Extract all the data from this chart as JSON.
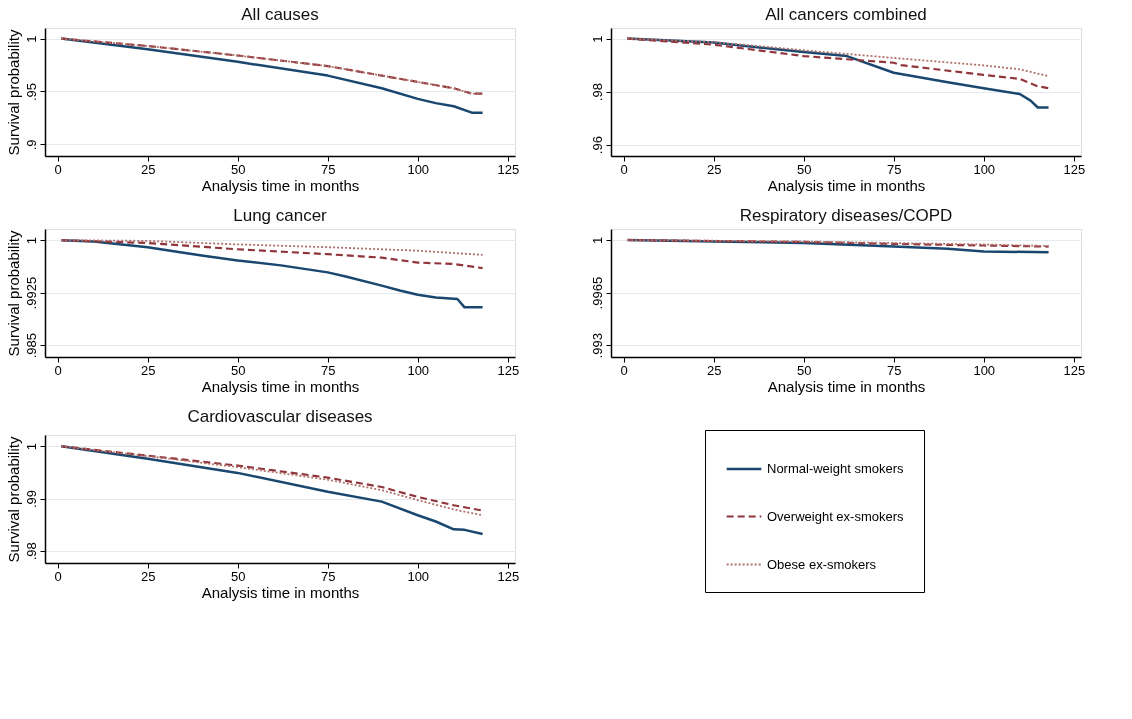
{
  "chart_data": [
    {
      "type": "line",
      "title": "All causes",
      "xlabel": "Analysis time in months",
      "ylabel": "Survival probability",
      "xlim": [
        -3.5,
        127
      ],
      "xticks": [
        0,
        25,
        50,
        75,
        100,
        125
      ],
      "ylim": [
        0.889,
        1.01
      ],
      "yticks": [
        {
          "value": 0.9,
          "label": ".9"
        },
        {
          "value": 0.95,
          "label": ".95"
        },
        1
      ],
      "grid": "y",
      "marker": "none",
      "legend": false,
      "series": [
        {
          "color": "#1a476f",
          "line_style": "solid",
          "x": [
            1,
            25,
            50,
            75,
            90,
            100,
            105,
            110,
            115,
            118
          ],
          "values": [
            1,
            0.99,
            0.978,
            0.965,
            0.953,
            0.943,
            0.939,
            0.936,
            0.93,
            0.93
          ]
        },
        {
          "color": "#90353b",
          "line_style": "dashed",
          "x": [
            1,
            25,
            50,
            75,
            100,
            110,
            115,
            118
          ],
          "values": [
            1,
            0.993,
            0.984,
            0.974,
            0.959,
            0.953,
            0.948,
            0.948
          ]
        },
        {
          "color": "#b0706a",
          "line_style": "dotted",
          "x": [
            1,
            25,
            50,
            75,
            100,
            110,
            115,
            118
          ],
          "values": [
            1,
            0.993,
            0.984,
            0.974,
            0.959,
            0.953,
            0.948,
            0.948
          ]
        }
      ]
    },
    {
      "type": "line",
      "title": "All cancers combined",
      "xlabel": "Analysis time in months",
      "xlim": [
        -3.5,
        127
      ],
      "xticks": [
        0,
        25,
        50,
        75,
        100,
        125
      ],
      "ylim": [
        0.9557,
        1.004
      ],
      "yticks": [
        {
          "value": 0.96,
          "label": ".96"
        },
        {
          "value": 0.98,
          "label": ".98"
        },
        1
      ],
      "grid": "y",
      "marker": "none",
      "legend": false,
      "series": [
        {
          "color": "#1a476f",
          "line_style": "solid",
          "x": [
            1,
            25,
            50,
            62,
            75,
            90,
            100,
            110,
            113,
            115,
            118
          ],
          "values": [
            1,
            0.9985,
            0.9949,
            0.9934,
            0.9871,
            0.9835,
            0.9813,
            0.9791,
            0.9766,
            0.974,
            0.974
          ]
        },
        {
          "color": "#90353b",
          "line_style": "dashed",
          "x": [
            1,
            25,
            50,
            75,
            77,
            100,
            110,
            115,
            118
          ],
          "values": [
            1,
            0.9977,
            0.9934,
            0.9909,
            0.99,
            0.9863,
            0.9848,
            0.982,
            0.9813
          ]
        },
        {
          "color": "#b0706a",
          "line_style": "dotted",
          "x": [
            1,
            25,
            50,
            75,
            100,
            110,
            118
          ],
          "values": [
            1,
            0.9987,
            0.9956,
            0.9927,
            0.9899,
            0.9884,
            0.9858
          ]
        }
      ]
    },
    {
      "type": "line",
      "title": "Lung cancer",
      "xlabel": "Analysis time in months",
      "ylabel": "Survival probability",
      "xlim": [
        -3.5,
        127
      ],
      "xticks": [
        0,
        25,
        50,
        75,
        100,
        125
      ],
      "ylim": [
        0.9833,
        1.0016
      ],
      "yticks": [
        {
          "value": 0.985,
          "label": ".985"
        },
        {
          "value": 0.9925,
          "label": ".9925"
        },
        1
      ],
      "grid": "y",
      "marker": "none",
      "legend": false,
      "series": [
        {
          "color": "#1a476f",
          "line_style": "solid",
          "x": [
            1,
            10,
            25,
            40,
            50,
            62,
            75,
            80,
            90,
            95,
            100,
            105,
            111,
            113,
            118
          ],
          "values": [
            1,
            0.9998,
            0.999,
            0.9978,
            0.9971,
            0.9964,
            0.9954,
            0.9948,
            0.9935,
            0.9928,
            0.9922,
            0.9918,
            0.9916,
            0.9904,
            0.9904
          ]
        },
        {
          "color": "#90353b",
          "line_style": "dashed",
          "x": [
            1,
            25,
            50,
            75,
            90,
            100,
            110,
            118
          ],
          "values": [
            1,
            0.9996,
            0.9987,
            0.998,
            0.9975,
            0.9968,
            0.9966,
            0.996
          ]
        },
        {
          "color": "#b0706a",
          "line_style": "dotted",
          "x": [
            1,
            25,
            50,
            75,
            100,
            118
          ],
          "values": [
            1,
            0.9999,
            0.9994,
            0.999,
            0.9985,
            0.9979
          ]
        }
      ]
    },
    {
      "type": "line",
      "title": "Respiratory diseases/COPD",
      "xlabel": "Analysis time in months",
      "xlim": [
        -3.5,
        127
      ],
      "xticks": [
        0,
        25,
        50,
        75,
        100,
        125
      ],
      "ylim": [
        0.99222,
        1.00073
      ],
      "yticks": [
        {
          "value": 0.993,
          "label": ".993"
        },
        {
          "value": 0.9965,
          "label": ".9965"
        },
        1
      ],
      "grid": "y",
      "marker": "none",
      "legend": false,
      "series": [
        {
          "color": "#1a476f",
          "line_style": "solid",
          "x": [
            1,
            25,
            50,
            75,
            90,
            100,
            118
          ],
          "values": [
            1,
            0.9999,
            0.9998,
            0.99956,
            0.99941,
            0.99923,
            0.99919
          ]
        },
        {
          "color": "#90353b",
          "line_style": "dashed",
          "x": [
            1,
            25,
            50,
            75,
            100,
            118
          ],
          "values": [
            1,
            0.99993,
            0.99987,
            0.99974,
            0.99963,
            0.99956
          ]
        },
        {
          "color": "#b0706a",
          "line_style": "dotted",
          "x": [
            1,
            25,
            50,
            75,
            100,
            118
          ],
          "values": [
            1,
            0.99995,
            0.9999,
            0.9998,
            0.9997,
            0.9996
          ]
        }
      ]
    },
    {
      "type": "line",
      "title": "Cardiovascular diseases",
      "xlabel": "Analysis time in months",
      "ylabel": "Survival probability",
      "xlim": [
        -3.5,
        127
      ],
      "xticks": [
        0,
        25,
        50,
        75,
        100,
        125
      ],
      "ylim": [
        0.97766,
        1.00215
      ],
      "yticks": [
        {
          "value": 0.98,
          "label": ".98"
        },
        {
          "value": 0.99,
          "label": ".99"
        },
        1
      ],
      "grid": "y",
      "marker": "none",
      "legend": "right",
      "series": [
        {
          "name": "Normal-weight smokers",
          "color": "#1a476f",
          "line_style": "solid",
          "x": [
            1,
            25,
            50,
            75,
            90,
            100,
            105,
            110,
            113,
            118
          ],
          "values": [
            1,
            0.9976,
            0.9949,
            0.9913,
            0.9894,
            0.9868,
            0.9856,
            0.9841,
            0.984,
            0.9832
          ]
        },
        {
          "name": "Overweight ex-smokers",
          "color": "#90353b",
          "line_style": "dashed",
          "x": [
            1,
            25,
            50,
            75,
            90,
            100,
            110,
            118
          ],
          "values": [
            1,
            0.9982,
            0.9963,
            0.994,
            0.9922,
            0.9903,
            0.9887,
            0.9877
          ]
        },
        {
          "name": "Obese ex-smokers",
          "color": "#b0706a",
          "line_style": "dotted",
          "x": [
            1,
            25,
            50,
            75,
            90,
            100,
            110,
            118
          ],
          "values": [
            1,
            0.9981,
            0.996,
            0.9936,
            0.9916,
            0.9897,
            0.9879,
            0.9868
          ]
        }
      ]
    }
  ]
}
